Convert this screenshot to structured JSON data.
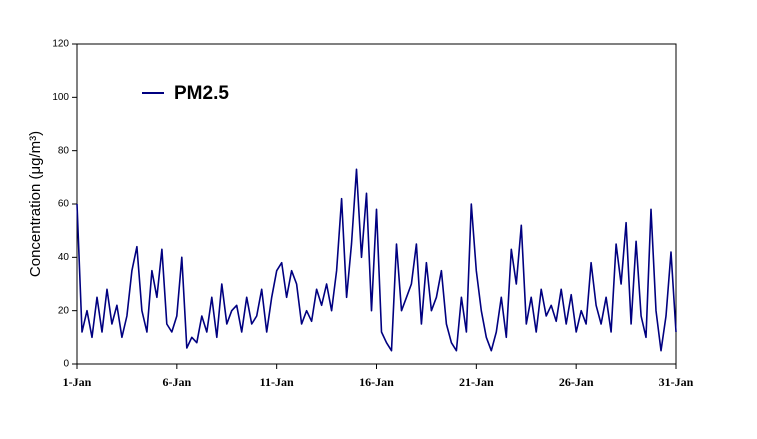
{
  "chart_data": {
    "type": "line",
    "y_label": "Concentration (μg/m³)",
    "x": [
      1,
      1.25,
      1.5,
      1.75,
      2,
      2.25,
      2.5,
      2.75,
      3,
      3.25,
      3.5,
      3.75,
      4,
      4.25,
      4.5,
      4.75,
      5,
      5.25,
      5.5,
      5.75,
      6,
      6.25,
      6.5,
      6.75,
      7,
      7.25,
      7.5,
      7.75,
      8,
      8.25,
      8.5,
      8.75,
      9,
      9.25,
      9.5,
      9.75,
      10,
      10.25,
      10.5,
      10.75,
      11,
      11.25,
      11.5,
      11.75,
      12,
      12.25,
      12.5,
      12.75,
      13,
      13.25,
      13.5,
      13.75,
      14,
      14.25,
      14.5,
      14.75,
      15,
      15.25,
      15.5,
      15.75,
      16,
      16.25,
      16.5,
      16.75,
      17,
      17.25,
      17.5,
      17.75,
      18,
      18.25,
      18.5,
      18.75,
      19,
      19.25,
      19.5,
      19.75,
      20,
      20.25,
      20.5,
      20.75,
      21,
      21.25,
      21.5,
      21.75,
      22,
      22.25,
      22.5,
      22.75,
      23,
      23.25,
      23.5,
      23.75,
      24,
      24.25,
      24.5,
      24.75,
      25,
      25.25,
      25.5,
      25.75,
      26,
      26.25,
      26.5,
      26.75,
      27,
      27.25,
      27.5,
      27.75,
      28,
      28.25,
      28.5,
      28.75,
      29,
      29.25,
      29.5,
      29.75,
      30,
      30.25,
      30.5,
      30.75,
      31
    ],
    "series": [
      {
        "name": "PM2.5",
        "color": "#000080",
        "values": [
          60,
          12,
          20,
          10,
          25,
          12,
          28,
          15,
          22,
          10,
          18,
          35,
          44,
          20,
          12,
          35,
          25,
          43,
          15,
          12,
          18,
          40,
          6,
          10,
          8,
          18,
          12,
          25,
          10,
          30,
          15,
          20,
          22,
          12,
          25,
          15,
          18,
          28,
          12,
          25,
          35,
          38,
          25,
          35,
          30,
          15,
          20,
          16,
          28,
          22,
          30,
          20,
          35,
          62,
          25,
          45,
          73,
          40,
          64,
          20,
          58,
          12,
          8,
          5,
          45,
          20,
          25,
          30,
          45,
          15,
          38,
          20,
          25,
          35,
          15,
          8,
          5,
          25,
          12,
          60,
          35,
          20,
          10,
          5,
          12,
          25,
          10,
          43,
          30,
          52,
          15,
          25,
          12,
          28,
          18,
          22,
          16,
          28,
          15,
          26,
          12,
          20,
          15,
          38,
          22,
          15,
          25,
          12,
          45,
          30,
          53,
          15,
          46,
          18,
          10,
          58,
          20,
          5,
          18,
          42,
          12
        ]
      }
    ],
    "xlim": [
      1,
      31
    ],
    "xticks": [
      {
        "value": 1,
        "label": "1-Jan"
      },
      {
        "value": 6,
        "label": "6-Jan"
      },
      {
        "value": 11,
        "label": "11-Jan"
      },
      {
        "value": 16,
        "label": "16-Jan"
      },
      {
        "value": 21,
        "label": "21-Jan"
      },
      {
        "value": 26,
        "label": "26-Jan"
      },
      {
        "value": 31,
        "label": "31-Jan"
      }
    ],
    "ylim": [
      0,
      120
    ],
    "yticks": [
      0,
      20,
      40,
      60,
      80,
      100,
      120
    ],
    "legend": "top-left"
  }
}
